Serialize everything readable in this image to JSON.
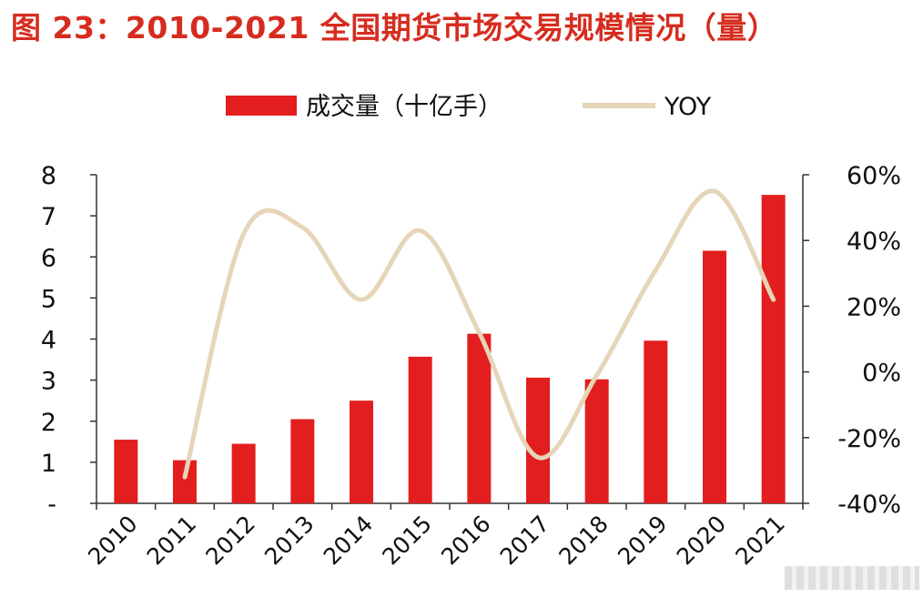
{
  "title": "图 23：2010-2021 全国期货市场交易规模情况（量）",
  "colors": {
    "title": "#d62c1f",
    "bar": "#e31e1e",
    "line": "#e6d5b8",
    "axis": "#333333"
  },
  "chart_data": {
    "type": "bar",
    "categories": [
      "2010",
      "2011",
      "2012",
      "2013",
      "2014",
      "2015",
      "2016",
      "2017",
      "2018",
      "2019",
      "2020",
      "2021"
    ],
    "series": [
      {
        "name": "成交量（十亿手）",
        "type": "bar",
        "axis": "left",
        "values": [
          1.55,
          1.05,
          1.45,
          2.05,
          2.5,
          3.57,
          4.13,
          3.06,
          3.02,
          3.96,
          6.15,
          7.51
        ]
      },
      {
        "name": "YOY",
        "type": "line",
        "axis": "right",
        "values": [
          null,
          -32,
          42,
          44,
          22,
          43,
          12,
          -26,
          -1,
          31,
          55,
          22
        ]
      }
    ],
    "y_left": {
      "ylim": [
        0,
        8
      ],
      "ticks": [
        "-",
        "1",
        "2",
        "3",
        "4",
        "5",
        "6",
        "7",
        "8"
      ]
    },
    "y_right": {
      "ylim": [
        -40,
        60
      ],
      "ticks": [
        "-40%",
        "-20%",
        "0%",
        "20%",
        "40%",
        "60%"
      ]
    },
    "legend_position": "top",
    "grid": false
  }
}
